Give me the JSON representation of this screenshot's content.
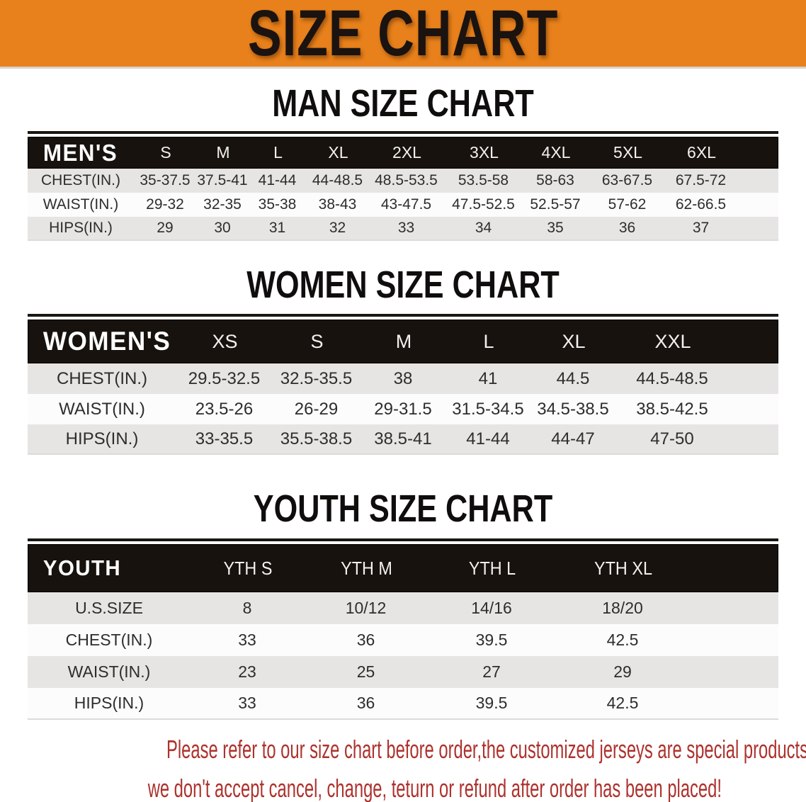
{
  "banner": {
    "title": "SIZE CHART"
  },
  "sections": [
    {
      "heading": "MAN SIZE CHART",
      "table": {
        "header_label": "MEN'S",
        "columns": [
          "S",
          "M",
          "L",
          "XL",
          "2XL",
          "3XL",
          "4XL",
          "5XL",
          "6XL"
        ],
        "rows": [
          {
            "label": "CHEST(IN.)",
            "values": [
              "35-37.5",
              "37.5-41",
              "41-44",
              "44-48.5",
              "48.5-53.5",
              "53.5-58",
              "58-63",
              "63-67.5",
              "67.5-72"
            ]
          },
          {
            "label": "WAIST(IN.)",
            "values": [
              "29-32",
              "32-35",
              "35-38",
              "38-43",
              "43-47.5",
              "47.5-52.5",
              "52.5-57",
              "57-62",
              "62-66.5"
            ]
          },
          {
            "label": "HIPS(IN.)",
            "values": [
              "29",
              "30",
              "31",
              "32",
              "33",
              "34",
              "35",
              "36",
              "37"
            ]
          }
        ]
      }
    },
    {
      "heading": "WOMEN SIZE CHART",
      "table": {
        "header_label": "WOMEN'S",
        "columns": [
          "XS",
          "S",
          "M",
          "L",
          "XL",
          "XXL"
        ],
        "rows": [
          {
            "label": "CHEST(IN.)",
            "values": [
              "29.5-32.5",
              "32.5-35.5",
              "38",
              "41",
              "44.5",
              "44.5-48.5"
            ]
          },
          {
            "label": "WAIST(IN.)",
            "values": [
              "23.5-26",
              "26-29",
              "29-31.5",
              "31.5-34.5",
              "34.5-38.5",
              "38.5-42.5"
            ]
          },
          {
            "label": "HIPS(IN.)",
            "values": [
              "33-35.5",
              "35.5-38.5",
              "38.5-41",
              "41-44",
              "44-47",
              "47-50"
            ]
          }
        ]
      }
    },
    {
      "heading": "YOUTH SIZE CHART",
      "table": {
        "header_label": "YOUTH",
        "columns": [
          "YTH S",
          "YTH M",
          "YTH L",
          "YTH XL"
        ],
        "rows": [
          {
            "label": "U.S.SIZE",
            "values": [
              "8",
              "10/12",
              "14/16",
              "18/20"
            ]
          },
          {
            "label": "CHEST(IN.)",
            "values": [
              "33",
              "36",
              "39.5",
              "42.5"
            ]
          },
          {
            "label": "WAIST(IN.)",
            "values": [
              "23",
              "25",
              "27",
              "29"
            ]
          },
          {
            "label": "HIPS(IN.)",
            "values": [
              "33",
              "36",
              "39.5",
              "42.5"
            ]
          }
        ]
      }
    }
  ],
  "footer": {
    "line1": "Please refer to our size chart before order,the customized jerseys are special products,",
    "line2": "we don't accept cancel, change, teturn or refund after order has been placed!"
  },
  "colors": {
    "banner_bg": "#E8811B",
    "bar_bg": "#17120E",
    "row_gray": "#E6E5E3",
    "row_white": "#FCFCFC",
    "footer_red": "#AD322D"
  }
}
